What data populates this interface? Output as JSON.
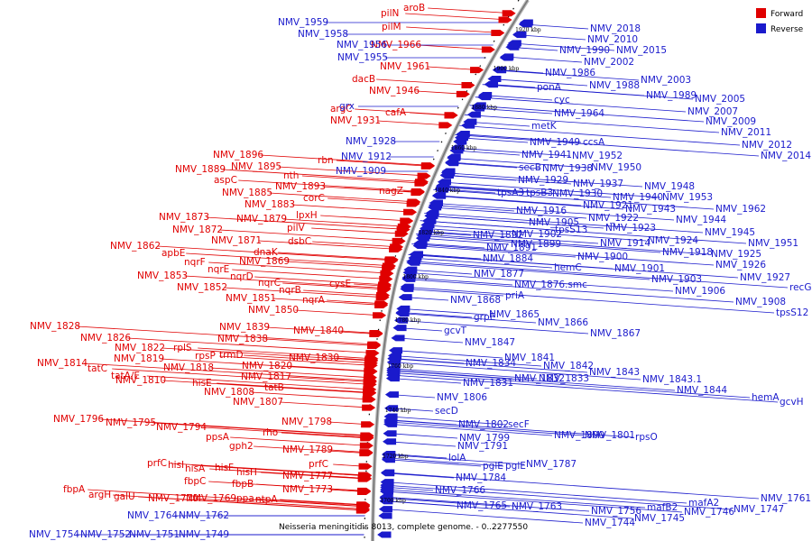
{
  "legend": {
    "forward_label": "Forward",
    "reverse_label": "Reverse",
    "forward_color": "#e00000",
    "reverse_color": "#1a1acc"
  },
  "caption": "Neisseria meningitidis 8013, complete genome. - 0..2277550",
  "kbp_ticks": [
    "1920 kbp",
    "1900 kbp",
    "1880 kbp",
    "1860 kbp",
    "1840 kbp",
    "1820 kbp",
    "1800 kbp",
    "1780 kbp",
    "1760 kbp",
    "1740 kbp",
    "1720 kbp",
    "1700 kbp"
  ],
  "forward_labels": [
    "aroB",
    "pilN",
    "pilM",
    "NMV_1966",
    "NMV_1961",
    "dacB",
    "NMV_1946",
    "argC",
    "cafA",
    "NMV_1931",
    "rbn",
    "NMV_1896",
    "NMV_1889",
    "NMV_1895",
    "nth",
    "aspC",
    "NMV_1893",
    "nagZ",
    "NMV_1885",
    "corC",
    "NMV_1883",
    "lpxH",
    "NMV_1873",
    "NMV_1879",
    "pilV",
    "NMV_1872",
    "NMV_1871",
    "dsbC",
    "NMV_1862",
    "dnaK",
    "apbE",
    "NMV_1869",
    "nqrF",
    "nqrE",
    "NMV_1853",
    "nqrD",
    "cysE",
    "nqrC",
    "nqrB",
    "NMV_1852",
    "NMV_1851",
    "nqrA",
    "NMV_1850",
    "NMV_1839",
    "NMV_1828",
    "NMV_1840",
    "NMV_1826",
    "NMV_1838",
    "NMV_1822",
    "rplS",
    "rpsP",
    "trmD",
    "NMV_1830",
    "NMV_1819",
    "NMV_1814",
    "NMV_1820",
    "tatC",
    "NMV_1818",
    "tatA/E",
    "NMV_1817",
    "NMV_1810",
    "hisE",
    "tatB",
    "NMV_1808",
    "NMV_1807",
    "NMV_1796",
    "NMV_1798",
    "NMV_1795",
    "NMV_1794",
    "rho",
    "ppsA",
    "gph2",
    "NMV_1789",
    "prfC",
    "hisI",
    "hisA",
    "hisF",
    "prfC",
    "hisH",
    "NMV_1777",
    "fbpC",
    "fbpB",
    "fbpA",
    "NMV_1773",
    "argH",
    "galU",
    "NMV_1770",
    "NMV_1769",
    "ppa",
    "ntpA"
  ],
  "reverse_labels": [
    "NMV_1959",
    "NMV_1958",
    "NMV_1956",
    "NMV_1955",
    "grx",
    "NMV_1928",
    "NMV_1912",
    "NMV_1909",
    "NMV_1764",
    "NMV_1762",
    "NMV_1754",
    "NMV_1752",
    "NMV_1751",
    "NMV_1749",
    "NMV_2018",
    "NMV_2010",
    "NMV_1990",
    "NMV_2015",
    "NMV_2002",
    "NMV_1986",
    "NMV_2003",
    "NMV_1988",
    "NMV_1989",
    "NMV_2005",
    "ponA",
    "cyc",
    "NMV_1964",
    "NMV_2007",
    "NMV_2009",
    "metK",
    "NMV_2011",
    "NMV_1949",
    "ccsA",
    "NMV_2012",
    "NMV_1941",
    "NMV_1952",
    "NMV_2014",
    "secB",
    "NMV_1938",
    "NMV_1950",
    "NMV_1929",
    "NMV_1937",
    "NMV_1948",
    "tpsA3",
    "tpsB3",
    "NMV_1930",
    "NMV_1940",
    "NMV_1953",
    "NMV_1921",
    "NMV_1943",
    "NMV_1962",
    "NMV_1916",
    "NMV_1922",
    "NMV_1944",
    "NMV_1905",
    "NMV_1923",
    "NMV_1892",
    "NMV_1902",
    "tpsS13",
    "NMV_1945",
    "NMV_1924",
    "NMV_1899",
    "NMV_1914",
    "NMV_1891",
    "NMV_1918",
    "NMV_1925",
    "NMV_1951",
    "NMV_1900",
    "NMV_1884",
    "hemC",
    "NMV_1901",
    "NMV_1926",
    "NMV_1877",
    "NMV_1903",
    "NMV_1927",
    "NMV_1876.smc",
    "recG",
    "NMV_1906",
    "NMV_1868",
    "priA",
    "NMV_1908",
    "NMV_1865",
    "tpsS12",
    "grpE",
    "NMV_1866",
    "gcvT",
    "NMV_1867",
    "NMV_1847",
    "NMV_1841",
    "NMV_1834",
    "NMV_1842",
    "NMV_1843",
    "NMV_1831",
    "NMV_1832",
    "NMV_1833",
    "NMV_1843.1",
    "NMV_1844",
    "hemA",
    "gcvH",
    "NMV_1806",
    "secD",
    "NMV_1802",
    "secF",
    "NMV_1799",
    "NMV_1800",
    "NMV_1801",
    "rpsO",
    "NMV_1791",
    "lolA",
    "pglE",
    "pglE",
    "NMV_1787",
    "NMV_1784",
    "NMV_1766",
    "NMV_1765",
    "NMV_1763",
    "NMV_1756",
    "mafB2",
    "mafA2",
    "NMV_1761",
    "NMV_1744",
    "NMV_1745",
    "NMV_1746",
    "NMV_1747"
  ]
}
